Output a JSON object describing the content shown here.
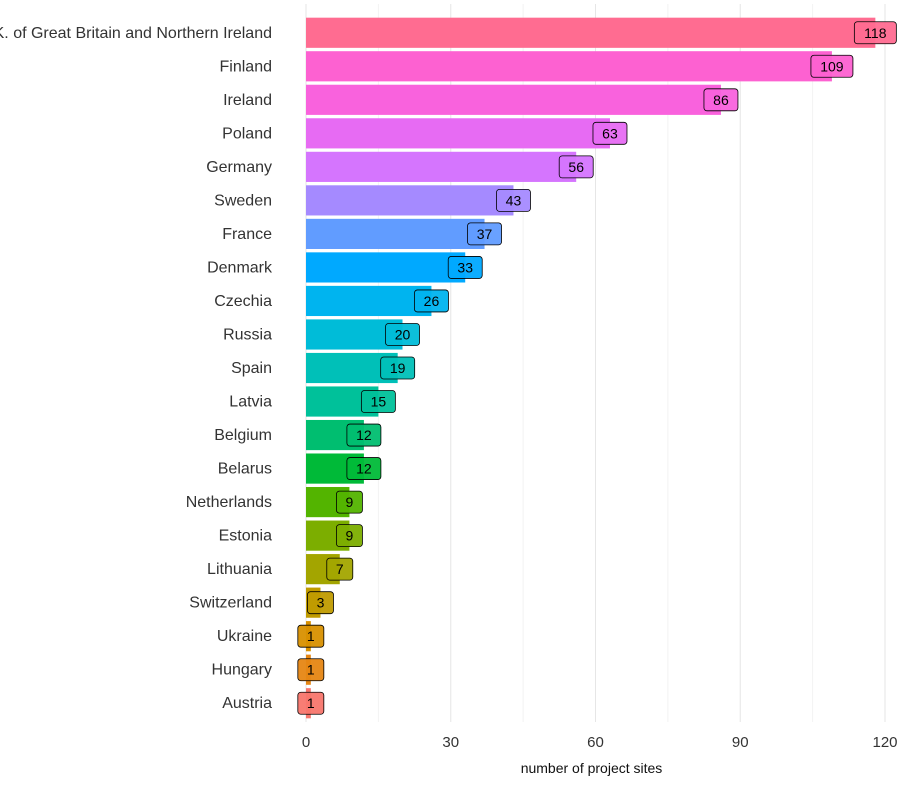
{
  "chart_data": {
    "type": "bar",
    "orientation": "horizontal",
    "title": "",
    "xlabel": "number of project sites",
    "ylabel": "",
    "xlim": [
      0,
      120
    ],
    "xticks": [
      0,
      30,
      60,
      90,
      120
    ],
    "grid": true,
    "legend": "none",
    "categories": [
      "U.K. of Great Britain and Northern Ireland",
      "Finland",
      "Ireland",
      "Poland",
      "Germany",
      "Sweden",
      "France",
      "Denmark",
      "Czechia",
      "Russia",
      "Spain",
      "Latvia",
      "Belgium",
      "Belarus",
      "Netherlands",
      "Estonia",
      "Lithuania",
      "Switzerland",
      "Ukraine",
      "Hungary",
      "Austria"
    ],
    "values": [
      118,
      109,
      86,
      63,
      56,
      43,
      37,
      33,
      26,
      20,
      19,
      15,
      12,
      12,
      9,
      9,
      7,
      3,
      1,
      1,
      1
    ],
    "colors": [
      "#FF6C91",
      "#FD61D1",
      "#F962DD",
      "#E76BF3",
      "#D575FE",
      "#A58AFF",
      "#619CFF",
      "#00A9FF",
      "#00B4EF",
      "#00BCD8",
      "#00C0B8",
      "#00C19A",
      "#00BE70",
      "#00BA38",
      "#53B400",
      "#7CAE00",
      "#A3A500",
      "#C09B00",
      "#D89000",
      "#E68613",
      "#F8766D"
    ]
  }
}
